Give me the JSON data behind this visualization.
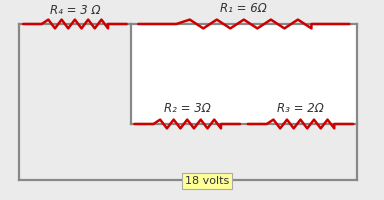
{
  "bg_color": "#ebebeb",
  "inner_bg": "#ffffff",
  "wire_color": "#888888",
  "resistor_color": "#cc0000",
  "text_color": "#333333",
  "voltage_label": "18 volts",
  "voltage_bg": "#ffff99",
  "R1_label": "R₁ = 6Ω",
  "R2_label": "R₂ = 3Ω",
  "R3_label": "R₃ = 2Ω",
  "R4_label": "R₄ = 3 Ω",
  "font_size": 8.5,
  "wire_lw": 1.6,
  "res_lw": 1.8,
  "res_amp": 0.022,
  "res_bumps": 5
}
